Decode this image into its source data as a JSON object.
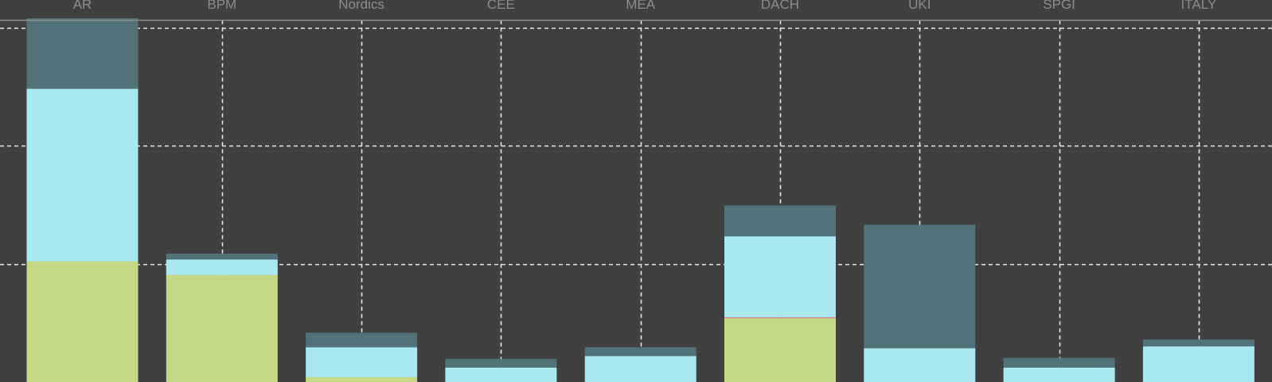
{
  "chart_data": {
    "type": "bar",
    "stacked": true,
    "categories": [
      "AR",
      "BPM",
      "Nordics",
      "CEE",
      "MEA",
      "DACH",
      "UKI",
      "SPGI",
      "ITALY"
    ],
    "series": [
      {
        "color": "#c4d985",
        "values": [
          125,
          111,
          5,
          0,
          0,
          66,
          0,
          0,
          0
        ]
      },
      {
        "color": "#e88080",
        "values": [
          0,
          0,
          0,
          0,
          0,
          1,
          0,
          0,
          0
        ]
      },
      {
        "color": "#aae8f0",
        "values": [
          179,
          16,
          31,
          15,
          27,
          84,
          35,
          15,
          37
        ]
      },
      {
        "color": "#527279",
        "values": [
          73,
          6,
          15,
          9,
          9,
          32,
          128,
          10,
          7
        ]
      }
    ],
    "ylim": [
      0,
      375
    ],
    "x_axis_position": "top",
    "grid": true,
    "legend": "none"
  },
  "colors": {
    "background": "#404040",
    "grid": "#e6e6e6",
    "axis": "#8c8c8c",
    "label": "#8c8c8c"
  }
}
